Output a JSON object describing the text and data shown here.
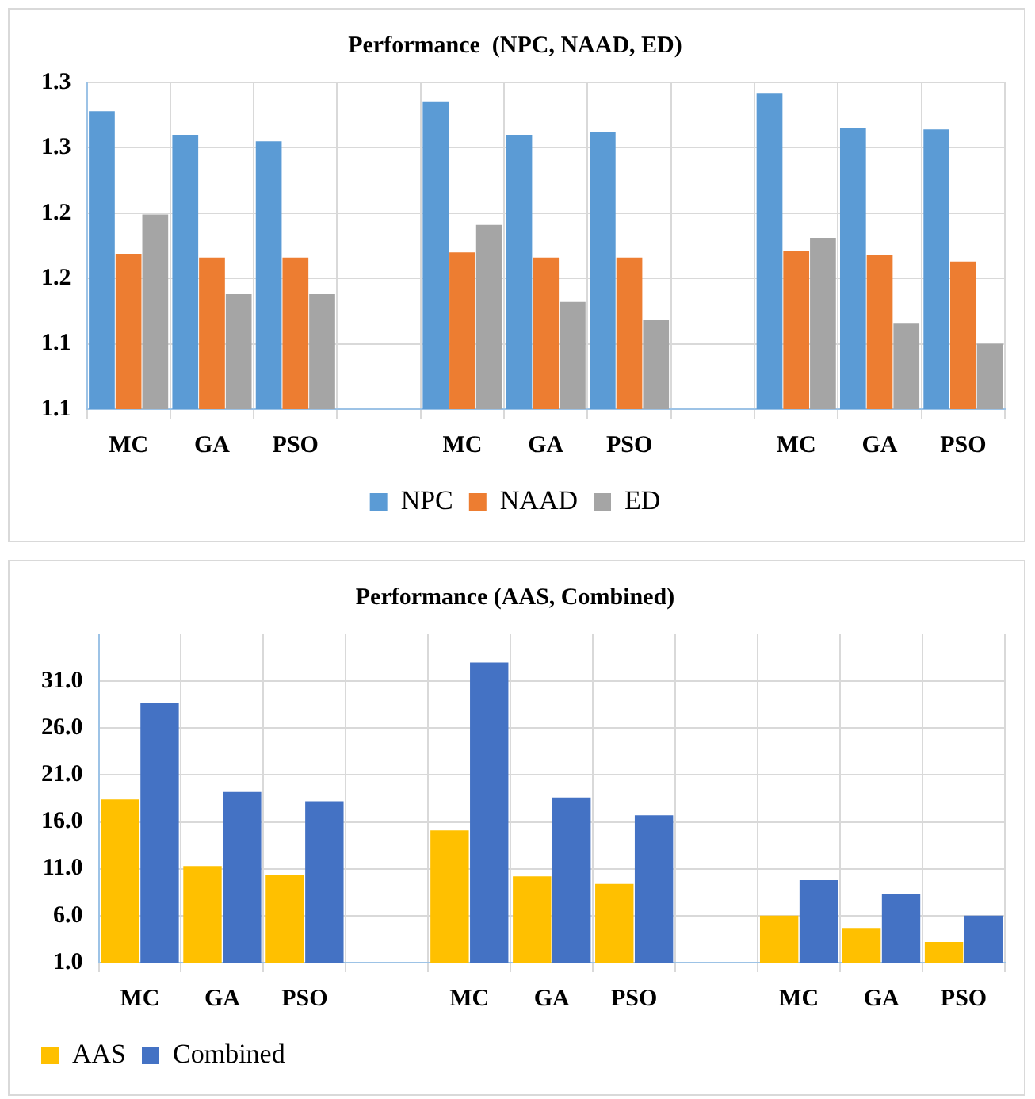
{
  "chart_data": [
    {
      "type": "bar",
      "title": "Performance  (NPC, NAAD, ED)",
      "categories": [
        "MC",
        "GA",
        "PSO",
        null,
        "MC",
        "GA",
        "PSO",
        null,
        "MC",
        "GA",
        "PSO"
      ],
      "series": [
        {
          "name": "NPC",
          "color": "#5b9bd5",
          "values": [
            1.278,
            1.26,
            1.255,
            null,
            1.285,
            1.26,
            1.262,
            null,
            1.292,
            1.265,
            1.264
          ]
        },
        {
          "name": "NAAD",
          "color": "#ed7d31",
          "values": [
            1.169,
            1.166,
            1.166,
            null,
            1.17,
            1.166,
            1.166,
            null,
            1.171,
            1.168,
            1.163
          ]
        },
        {
          "name": "ED",
          "color": "#a5a5a5",
          "values": [
            1.199,
            1.138,
            1.138,
            null,
            1.191,
            1.132,
            1.118,
            null,
            1.181,
            1.116,
            1.1
          ]
        }
      ],
      "ylim": [
        1.05,
        1.3
      ],
      "yticks": [
        {
          "value": 1.05,
          "label": "1.1"
        },
        {
          "value": 1.1,
          "label": "1.1"
        },
        {
          "value": 1.15,
          "label": "1.2"
        },
        {
          "value": 1.2,
          "label": "1.2"
        },
        {
          "value": 1.25,
          "label": "1.3"
        },
        {
          "value": 1.3,
          "label": "1.3"
        }
      ],
      "grid": true,
      "legend": "bottom"
    },
    {
      "type": "bar",
      "title": "Performance (AAS, Combined)",
      "categories": [
        "MC",
        "GA",
        "PSO",
        null,
        "MC",
        "GA",
        "PSO",
        null,
        "MC",
        "GA",
        "PSO"
      ],
      "series": [
        {
          "name": "AAS",
          "color": "#ffc000",
          "values": [
            18.4,
            11.3,
            10.3,
            null,
            15.1,
            10.2,
            9.4,
            null,
            6.0,
            4.7,
            3.2
          ]
        },
        {
          "name": "Combined",
          "color": "#4472c4",
          "values": [
            28.7,
            19.2,
            18.2,
            null,
            33.0,
            18.6,
            16.7,
            null,
            9.8,
            8.3,
            6.0
          ]
        }
      ],
      "ylim": [
        1,
        36
      ],
      "yticks": [
        {
          "value": 1,
          "label": "1.0"
        },
        {
          "value": 6,
          "label": "6.0"
        },
        {
          "value": 11,
          "label": "11.0"
        },
        {
          "value": 16,
          "label": "16.0"
        },
        {
          "value": 21,
          "label": "21.0"
        },
        {
          "value": 26,
          "label": "26.0"
        },
        {
          "value": 31,
          "label": "31.0"
        }
      ],
      "grid": true,
      "legend": "bottom left"
    }
  ]
}
